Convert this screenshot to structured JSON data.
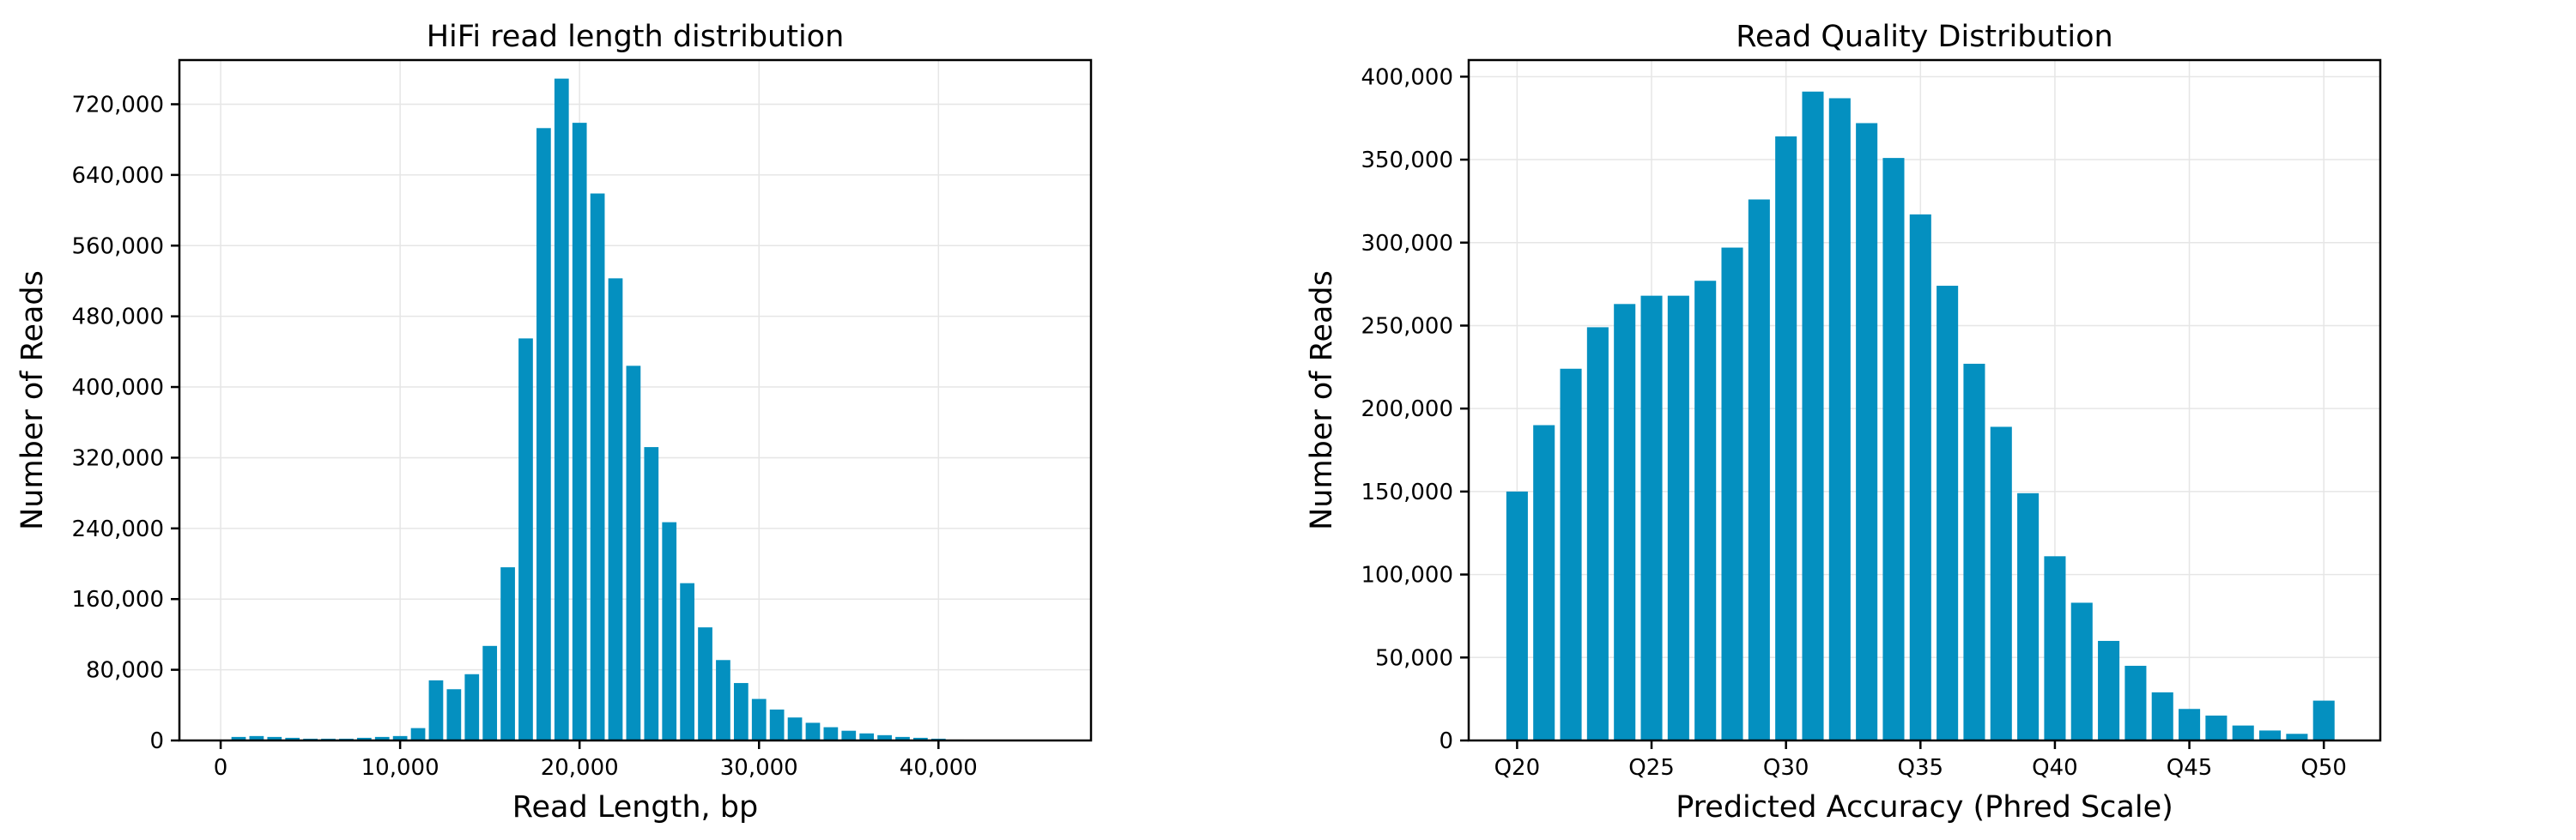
{
  "chart_data": [
    {
      "type": "bar",
      "title": "HiFi read length distribution",
      "xlabel": "Read Length, bp",
      "ylabel": "Number of Reads",
      "xlim": [
        -2300,
        48500
      ],
      "ylim": [
        0,
        770000
      ],
      "xticks": [
        0,
        10000,
        20000,
        30000,
        40000
      ],
      "xtick_labels": [
        "0",
        "10,000",
        "20,000",
        "30,000",
        "40,000"
      ],
      "yticks": [
        0,
        80000,
        160000,
        240000,
        320000,
        400000,
        480000,
        560000,
        640000,
        720000
      ],
      "ytick_labels": [
        "0",
        "80,000",
        "160,000",
        "240,000",
        "320,000",
        "400,000",
        "480,000",
        "560,000",
        "640,000",
        "720,000"
      ],
      "grid": true,
      "color": "#0490c0",
      "bin_width": 1000,
      "x": [
        0,
        1000,
        2000,
        3000,
        4000,
        5000,
        6000,
        7000,
        8000,
        9000,
        10000,
        11000,
        12000,
        13000,
        14000,
        15000,
        16000,
        17000,
        18000,
        19000,
        20000,
        21000,
        22000,
        23000,
        24000,
        25000,
        26000,
        27000,
        28000,
        29000,
        30000,
        31000,
        32000,
        33000,
        34000,
        35000,
        36000,
        37000,
        38000,
        39000,
        40000,
        41000,
        42000,
        43000,
        44000,
        45000,
        46000
      ],
      "values": [
        0,
        4000,
        5000,
        4000,
        3000,
        2000,
        2000,
        2000,
        3000,
        4000,
        5000,
        14000,
        68000,
        58000,
        75000,
        107000,
        196000,
        455000,
        693000,
        749000,
        699000,
        619000,
        523000,
        424000,
        332000,
        247000,
        178000,
        128000,
        91000,
        65000,
        47000,
        35000,
        26000,
        20000,
        15000,
        11000,
        8000,
        6000,
        4000,
        3000,
        2000,
        1000,
        0,
        0,
        0,
        0,
        0
      ]
    },
    {
      "type": "bar",
      "title": "Read Quality Distribution",
      "xlabel": "Predicted Accuracy (Phred Scale)",
      "ylabel": "Number of Reads",
      "xlim": [
        18.2,
        52.1
      ],
      "ylim": [
        0,
        410000
      ],
      "xticks": [
        20,
        25,
        30,
        35,
        40,
        45,
        50
      ],
      "xtick_labels": [
        "Q20",
        "Q25",
        "Q30",
        "Q35",
        "Q40",
        "Q45",
        "Q50"
      ],
      "yticks": [
        0,
        50000,
        100000,
        150000,
        200000,
        250000,
        300000,
        350000,
        400000
      ],
      "ytick_labels": [
        "0",
        "50,000",
        "100,000",
        "150,000",
        "200,000",
        "250,000",
        "300,000",
        "350,000",
        "400,000"
      ],
      "grid": true,
      "color": "#0490c0",
      "bin_width": 1,
      "x": [
        20,
        21,
        22,
        23,
        24,
        25,
        26,
        27,
        28,
        29,
        30,
        31,
        32,
        33,
        34,
        35,
        36,
        37,
        38,
        39,
        40,
        41,
        42,
        43,
        44,
        45,
        46,
        47,
        48,
        49,
        50
      ],
      "values": [
        150000,
        190000,
        224000,
        249000,
        263000,
        268000,
        268000,
        277000,
        297000,
        326000,
        364000,
        391000,
        387000,
        372000,
        351000,
        317000,
        274000,
        227000,
        189000,
        149000,
        111000,
        83000,
        60000,
        45000,
        29000,
        19000,
        15000,
        9000,
        6000,
        4000,
        24000
      ]
    }
  ]
}
